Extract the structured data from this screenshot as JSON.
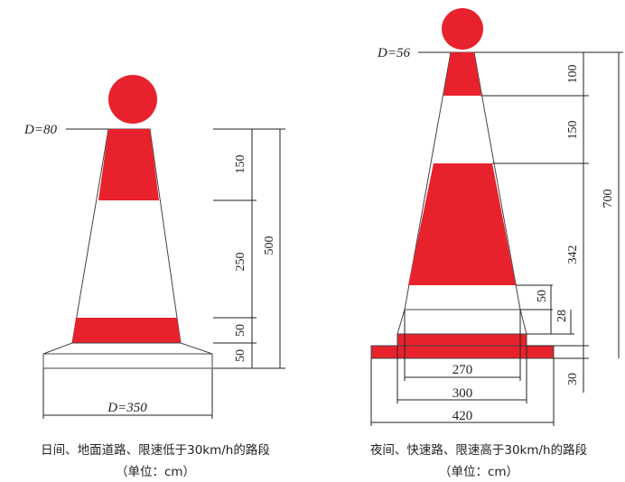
{
  "colors": {
    "red": "#e8222d",
    "outline": "#444444",
    "text": "#222222"
  },
  "left_cone": {
    "top_diameter_label": "D=80",
    "base_diameter_label": "D=350",
    "dims": {
      "d150": "150",
      "d250": "250",
      "d50a": "50",
      "d50b": "50",
      "total": "500"
    },
    "caption_line1": "日间、地面道路、限速低于30km/h的路段",
    "caption_line2": "（单位：cm）"
  },
  "right_cone": {
    "top_diameter_label": "D=56",
    "dims": {
      "d100": "100",
      "d150": "150",
      "d342": "342",
      "total": "700",
      "d50": "50",
      "d28": "28",
      "d30": "30",
      "w270": "270",
      "w300": "300",
      "w420": "420"
    },
    "caption_line1": "夜间、快速路、限速高于30km/h的路段",
    "caption_line2": "（单位：cm）"
  }
}
